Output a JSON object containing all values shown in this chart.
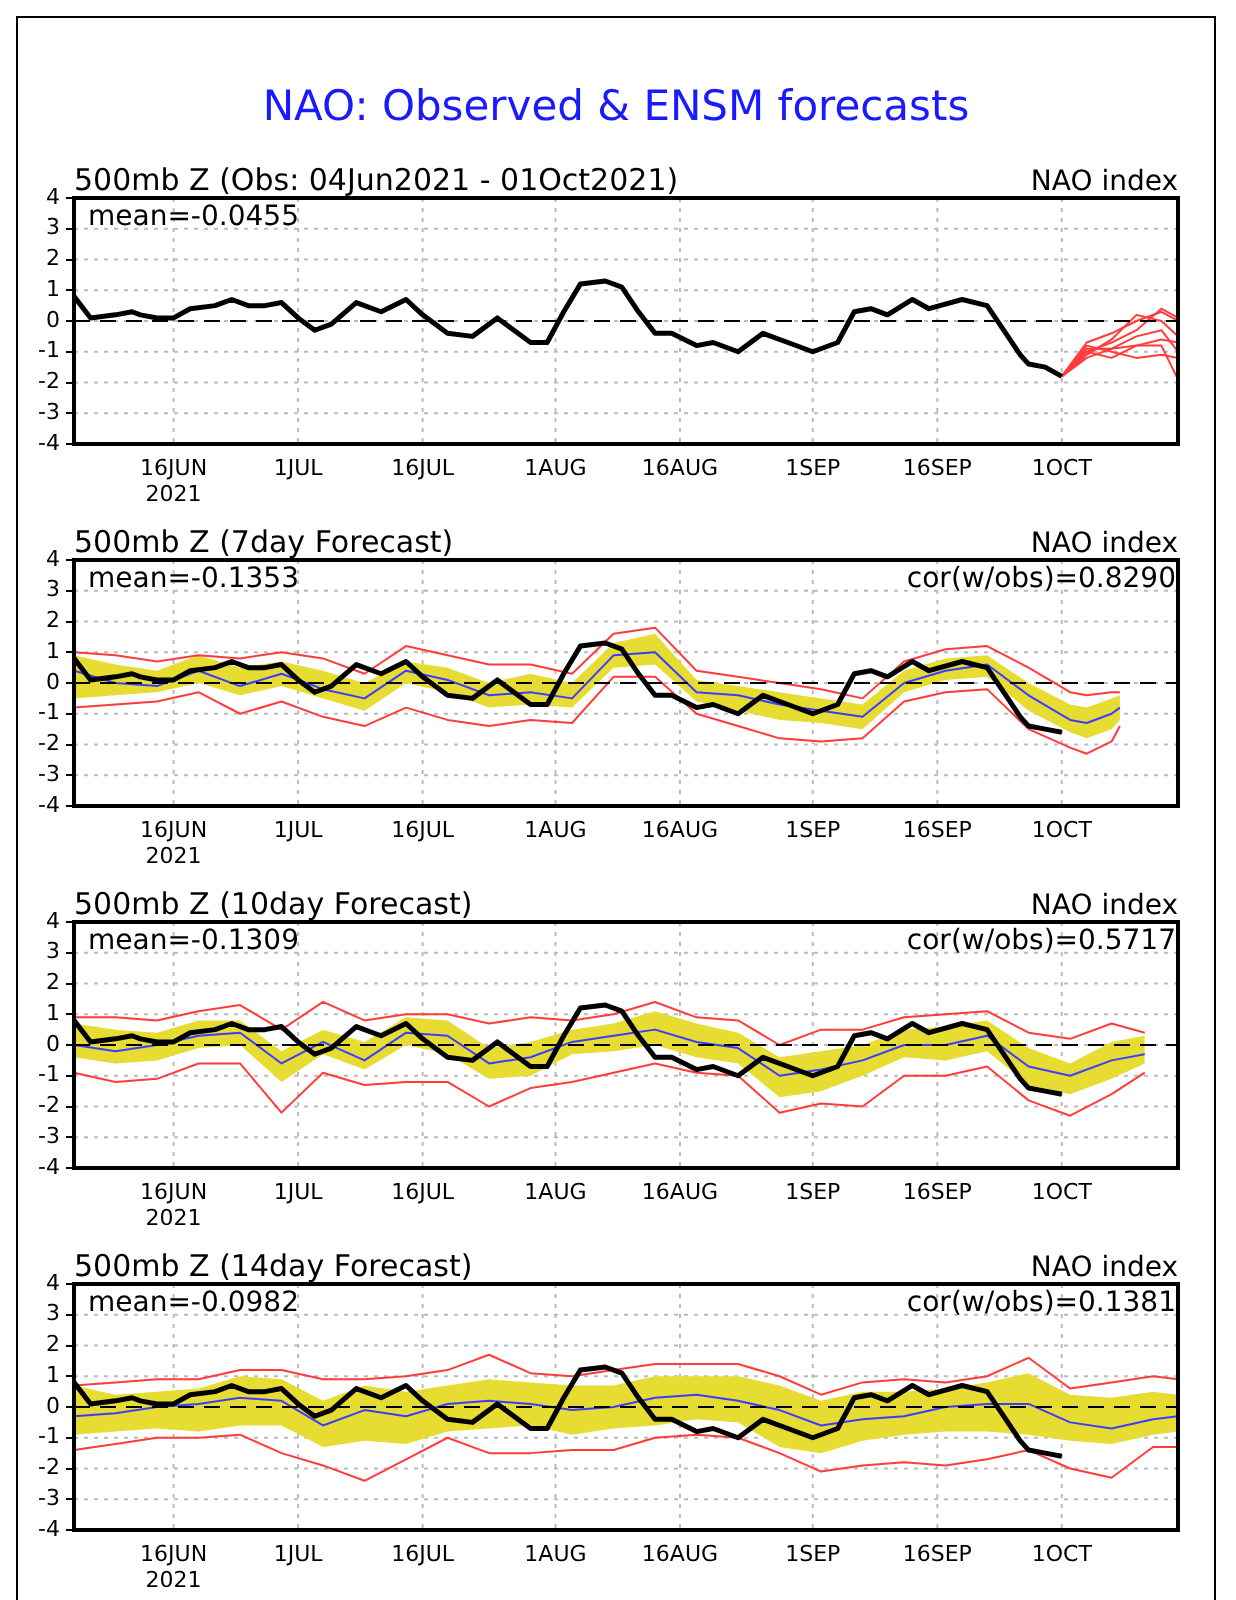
{
  "chart_data": [
    {
      "type": "line",
      "title": "NAO: Observed & ENSM forecasts",
      "subtitle": "500mb Z (Obs: 04Jun2021 - 01Oct2021)",
      "annotations": [
        "NAO index",
        "mean=-0.0455"
      ],
      "x": [
        "2021-06-04",
        "2021-06-06",
        "2021-06-09",
        "2021-06-11",
        "2021-06-12",
        "2021-06-14",
        "2021-06-16",
        "2021-06-18",
        "2021-06-21",
        "2021-06-23",
        "2021-06-25",
        "2021-06-27",
        "2021-06-29",
        "2021-07-01",
        "2021-07-03",
        "2021-07-05",
        "2021-07-08",
        "2021-07-11",
        "2021-07-14",
        "2021-07-16",
        "2021-07-19",
        "2021-07-22",
        "2021-07-25",
        "2021-07-27",
        "2021-07-29",
        "2021-07-31",
        "2021-08-02",
        "2021-08-04",
        "2021-08-07",
        "2021-08-09",
        "2021-08-11",
        "2021-08-13",
        "2021-08-15",
        "2021-08-18",
        "2021-08-20",
        "2021-08-23",
        "2021-08-26",
        "2021-08-29",
        "2021-09-01",
        "2021-09-04",
        "2021-09-06",
        "2021-09-08",
        "2021-09-10",
        "2021-09-13",
        "2021-09-15",
        "2021-09-19",
        "2021-09-22",
        "2021-09-24",
        "2021-09-26",
        "2021-09-27",
        "2021-09-29",
        "2021-10-01"
      ],
      "series": [
        {
          "color": "#000000",
          "values": [
            0.8,
            0.1,
            0.2,
            0.3,
            0.2,
            0.1,
            0.1,
            0.4,
            0.5,
            0.7,
            0.5,
            0.5,
            0.6,
            0.1,
            -0.3,
            -0.1,
            0.6,
            0.3,
            0.7,
            0.2,
            -0.4,
            -0.5,
            0.1,
            -0.3,
            -0.7,
            -0.7,
            0.3,
            1.2,
            1.3,
            1.1,
            0.3,
            -0.4,
            -0.4,
            -0.8,
            -0.7,
            -1.0,
            -0.4,
            -0.7,
            -1.0,
            -0.7,
            0.3,
            0.4,
            0.2,
            0.7,
            0.4,
            0.7,
            0.5,
            -0.3,
            -1.1,
            -1.4,
            -1.5,
            -1.8
          ]
        },
        {
          "color": "#ff3b3b",
          "x": [
            "2021-10-01",
            "2021-10-04",
            "2021-10-07",
            "2021-10-10",
            "2021-10-13",
            "2021-10-15"
          ],
          "values": [
            -1.8,
            -1.0,
            -0.7,
            -0.3,
            0.4,
            0.1
          ]
        },
        {
          "color": "#ff3b3b",
          "x": [
            "2021-10-01",
            "2021-10-04",
            "2021-10-07",
            "2021-10-10",
            "2021-10-13",
            "2021-10-15"
          ],
          "values": [
            -1.8,
            -0.9,
            -0.9,
            -0.8,
            -0.8,
            -1.9
          ]
        },
        {
          "color": "#ff3b3b",
          "x": [
            "2021-10-01",
            "2021-10-04",
            "2021-10-07",
            "2021-10-10",
            "2021-10-13",
            "2021-10-15"
          ],
          "values": [
            -1.8,
            -1.1,
            -0.6,
            0.2,
            0.0,
            -0.5
          ]
        },
        {
          "color": "#ff3b3b",
          "x": [
            "2021-10-01",
            "2021-10-04",
            "2021-10-07",
            "2021-10-10",
            "2021-10-13",
            "2021-10-15"
          ],
          "values": [
            -1.8,
            -0.8,
            -1.0,
            -1.2,
            -1.1,
            -1.2
          ]
        },
        {
          "color": "#ff3b3b",
          "x": [
            "2021-10-01",
            "2021-10-04",
            "2021-10-07",
            "2021-10-10",
            "2021-10-13",
            "2021-10-15"
          ],
          "values": [
            -1.8,
            -1.2,
            -0.9,
            -0.5,
            -0.3,
            -1.0
          ]
        },
        {
          "color": "#ff3b3b",
          "x": [
            "2021-10-01",
            "2021-10-04",
            "2021-10-07",
            "2021-10-10",
            "2021-10-13",
            "2021-10-15"
          ],
          "values": [
            -1.8,
            -0.7,
            -0.4,
            0.0,
            0.3,
            0.0
          ]
        },
        {
          "color": "#ff3b3b",
          "x": [
            "2021-10-01",
            "2021-10-04",
            "2021-10-07",
            "2021-10-10",
            "2021-10-13",
            "2021-10-15"
          ],
          "values": [
            -1.8,
            -1.0,
            -1.2,
            -0.8,
            -0.6,
            -0.7
          ]
        }
      ],
      "xlim": [
        "2021-06-04",
        "2021-10-15"
      ],
      "xticks": [
        {
          "value": "2021-06-16",
          "label": "16JUN\n2021"
        },
        {
          "value": "2021-07-01",
          "label": "1JUL"
        },
        {
          "value": "2021-07-16",
          "label": "16JUL"
        },
        {
          "value": "2021-08-01",
          "label": "1AUG"
        },
        {
          "value": "2021-08-16",
          "label": "16AUG"
        },
        {
          "value": "2021-09-01",
          "label": "1SEP"
        },
        {
          "value": "2021-09-16",
          "label": "16SEP"
        },
        {
          "value": "2021-10-01",
          "label": "1OCT"
        }
      ],
      "ylim": [
        -4,
        4
      ],
      "yticks": [
        -4,
        -3,
        -2,
        -1,
        0,
        1,
        2,
        3,
        4
      ],
      "grid": true,
      "marker": "none",
      "ref_lines": [
        {
          "axis": "y",
          "value": 0,
          "line_style": "dashed",
          "color": "#000000"
        }
      ]
    },
    {
      "type": "line",
      "title": "500mb Z (7day Forecast)",
      "annotations": [
        "NAO index",
        "mean=-0.1353",
        "cor(w/obs)=0.8290"
      ],
      "x": [
        "2021-06-04",
        "2021-06-09",
        "2021-06-14",
        "2021-06-19",
        "2021-06-24",
        "2021-06-29",
        "2021-07-04",
        "2021-07-09",
        "2021-07-14",
        "2021-07-19",
        "2021-07-24",
        "2021-07-29",
        "2021-08-03",
        "2021-08-08",
        "2021-08-13",
        "2021-08-18",
        "2021-08-23",
        "2021-08-28",
        "2021-09-02",
        "2021-09-07",
        "2021-09-12",
        "2021-09-17",
        "2021-09-22",
        "2021-09-27",
        "2021-10-02",
        "2021-10-04",
        "2021-10-07",
        "2021-10-08"
      ],
      "series": [
        {
          "color": "#000000",
          "x": [
            "2021-06-04",
            "2021-06-06",
            "2021-06-09",
            "2021-06-11",
            "2021-06-12",
            "2021-06-14",
            "2021-06-16",
            "2021-06-18",
            "2021-06-21",
            "2021-06-23",
            "2021-06-25",
            "2021-06-27",
            "2021-06-29",
            "2021-07-01",
            "2021-07-03",
            "2021-07-05",
            "2021-07-08",
            "2021-07-11",
            "2021-07-14",
            "2021-07-16",
            "2021-07-19",
            "2021-07-22",
            "2021-07-25",
            "2021-07-27",
            "2021-07-29",
            "2021-07-31",
            "2021-08-02",
            "2021-08-04",
            "2021-08-07",
            "2021-08-09",
            "2021-08-11",
            "2021-08-13",
            "2021-08-15",
            "2021-08-18",
            "2021-08-20",
            "2021-08-23",
            "2021-08-26",
            "2021-08-29",
            "2021-09-01",
            "2021-09-04",
            "2021-09-06",
            "2021-09-08",
            "2021-09-10",
            "2021-09-13",
            "2021-09-15",
            "2021-09-19",
            "2021-09-22",
            "2021-09-24",
            "2021-09-26",
            "2021-09-27",
            "2021-09-29",
            "2021-10-01"
          ],
          "values": [
            0.8,
            0.1,
            0.2,
            0.3,
            0.2,
            0.1,
            0.1,
            0.4,
            0.5,
            0.7,
            0.5,
            0.5,
            0.6,
            0.1,
            -0.3,
            -0.1,
            0.6,
            0.3,
            0.7,
            0.2,
            -0.4,
            -0.5,
            0.1,
            -0.3,
            -0.7,
            -0.7,
            0.3,
            1.2,
            1.3,
            1.1,
            0.3,
            -0.4,
            -0.4,
            -0.8,
            -0.7,
            -1.0,
            -0.4,
            -0.7,
            -1.0,
            -0.7,
            0.3,
            0.4,
            0.2,
            0.7,
            0.4,
            0.7,
            0.5,
            -0.3,
            -1.1,
            -1.4,
            -1.5,
            -1.6
          ]
        },
        {
          "color": "#ff3b3b",
          "values": [
            1.0,
            0.9,
            0.7,
            0.9,
            0.8,
            1.0,
            0.8,
            0.3,
            1.2,
            0.9,
            0.6,
            0.6,
            0.3,
            1.6,
            1.8,
            0.4,
            0.2,
            0.0,
            -0.2,
            -0.5,
            0.7,
            1.1,
            1.2,
            0.5,
            -0.3,
            -0.4,
            -0.3,
            -0.3
          ]
        },
        {
          "color": "#ff3b3b",
          "values": [
            -0.8,
            -0.7,
            -0.6,
            -0.3,
            -1.0,
            -0.6,
            -1.1,
            -1.4,
            -0.8,
            -1.2,
            -1.4,
            -1.2,
            -1.3,
            0.2,
            0.2,
            -1.0,
            -1.4,
            -1.8,
            -1.9,
            -1.8,
            -0.6,
            -0.3,
            -0.2,
            -1.5,
            -2.1,
            -2.3,
            -1.9,
            -1.4
          ]
        },
        {
          "color": "#3c3cff",
          "values": [
            0.4,
            0.0,
            -0.1,
            0.4,
            -0.1,
            0.3,
            -0.2,
            -0.5,
            0.4,
            0.1,
            -0.4,
            -0.3,
            -0.5,
            0.9,
            1.0,
            -0.3,
            -0.4,
            -0.7,
            -0.9,
            -1.1,
            0.0,
            0.4,
            0.6,
            -0.4,
            -1.2,
            -1.3,
            -1.0,
            -0.8
          ],
          "lower": [
            -0.5,
            -0.4,
            -0.3,
            0.0,
            -0.4,
            -0.1,
            -0.5,
            -0.9,
            0.0,
            -0.3,
            -0.8,
            -0.7,
            -0.8,
            0.5,
            0.6,
            -0.6,
            -0.9,
            -1.2,
            -1.3,
            -1.5,
            -0.3,
            0.1,
            0.2,
            -0.9,
            -1.6,
            -1.8,
            -1.5,
            -1.2
          ],
          "upper": [
            0.9,
            0.6,
            0.4,
            0.9,
            0.5,
            0.7,
            0.4,
            0.0,
            0.7,
            0.5,
            0.0,
            0.3,
            0.0,
            1.3,
            1.6,
            0.1,
            -0.1,
            -0.3,
            -0.5,
            -0.7,
            0.4,
            0.8,
            0.9,
            0.0,
            -0.7,
            -0.8,
            -0.5,
            -0.4
          ]
        }
      ],
      "xlim": [
        "2021-06-04",
        "2021-10-15"
      ],
      "xticks": [
        {
          "value": "2021-06-16",
          "label": "16JUN\n2021"
        },
        {
          "value": "2021-07-01",
          "label": "1JUL"
        },
        {
          "value": "2021-07-16",
          "label": "16JUL"
        },
        {
          "value": "2021-08-01",
          "label": "1AUG"
        },
        {
          "value": "2021-08-16",
          "label": "16AUG"
        },
        {
          "value": "2021-09-01",
          "label": "1SEP"
        },
        {
          "value": "2021-09-16",
          "label": "16SEP"
        },
        {
          "value": "2021-10-01",
          "label": "1OCT"
        }
      ],
      "ylim": [
        -4,
        4
      ],
      "yticks": [
        -4,
        -3,
        -2,
        -1,
        0,
        1,
        2,
        3,
        4
      ],
      "grid": true,
      "marker": "none",
      "ref_lines": [
        {
          "axis": "y",
          "value": 0,
          "line_style": "dashed",
          "color": "#000000"
        }
      ]
    },
    {
      "type": "line",
      "title": "500mb Z (10day Forecast)",
      "annotations": [
        "NAO index",
        "mean=-0.1309",
        "cor(w/obs)=0.5717"
      ],
      "x": [
        "2021-06-04",
        "2021-06-09",
        "2021-06-14",
        "2021-06-19",
        "2021-06-24",
        "2021-06-29",
        "2021-07-04",
        "2021-07-09",
        "2021-07-14",
        "2021-07-19",
        "2021-07-24",
        "2021-07-29",
        "2021-08-03",
        "2021-08-08",
        "2021-08-13",
        "2021-08-18",
        "2021-08-23",
        "2021-08-28",
        "2021-09-02",
        "2021-09-07",
        "2021-09-12",
        "2021-09-17",
        "2021-09-22",
        "2021-09-27",
        "2021-10-02",
        "2021-10-07",
        "2021-10-11"
      ],
      "series": [
        {
          "color": "#000000",
          "x": [
            "2021-06-04",
            "2021-06-06",
            "2021-06-09",
            "2021-06-11",
            "2021-06-12",
            "2021-06-14",
            "2021-06-16",
            "2021-06-18",
            "2021-06-21",
            "2021-06-23",
            "2021-06-25",
            "2021-06-27",
            "2021-06-29",
            "2021-07-01",
            "2021-07-03",
            "2021-07-05",
            "2021-07-08",
            "2021-07-11",
            "2021-07-14",
            "2021-07-16",
            "2021-07-19",
            "2021-07-22",
            "2021-07-25",
            "2021-07-27",
            "2021-07-29",
            "2021-07-31",
            "2021-08-02",
            "2021-08-04",
            "2021-08-07",
            "2021-08-09",
            "2021-08-11",
            "2021-08-13",
            "2021-08-15",
            "2021-08-18",
            "2021-08-20",
            "2021-08-23",
            "2021-08-26",
            "2021-08-29",
            "2021-09-01",
            "2021-09-04",
            "2021-09-06",
            "2021-09-08",
            "2021-09-10",
            "2021-09-13",
            "2021-09-15",
            "2021-09-19",
            "2021-09-22",
            "2021-09-24",
            "2021-09-26",
            "2021-09-27",
            "2021-09-29",
            "2021-10-01"
          ],
          "values": [
            0.8,
            0.1,
            0.2,
            0.3,
            0.2,
            0.1,
            0.1,
            0.4,
            0.5,
            0.7,
            0.5,
            0.5,
            0.6,
            0.1,
            -0.3,
            -0.1,
            0.6,
            0.3,
            0.7,
            0.2,
            -0.4,
            -0.5,
            0.1,
            -0.3,
            -0.7,
            -0.7,
            0.3,
            1.2,
            1.3,
            1.1,
            0.3,
            -0.4,
            -0.4,
            -0.8,
            -0.7,
            -1.0,
            -0.4,
            -0.7,
            -1.0,
            -0.7,
            0.3,
            0.4,
            0.2,
            0.7,
            0.4,
            0.7,
            0.5,
            -0.3,
            -1.1,
            -1.4,
            -1.5,
            -1.6
          ]
        },
        {
          "color": "#ff3b3b",
          "values": [
            0.9,
            0.9,
            0.8,
            1.1,
            1.3,
            0.5,
            1.4,
            0.8,
            1.0,
            1.0,
            0.7,
            0.9,
            0.8,
            1.0,
            1.4,
            0.9,
            0.8,
            0.0,
            0.5,
            0.5,
            0.9,
            1.0,
            1.1,
            0.4,
            0.2,
            0.7,
            0.4
          ]
        },
        {
          "color": "#ff3b3b",
          "values": [
            -0.9,
            -1.2,
            -1.1,
            -0.6,
            -0.6,
            -2.2,
            -0.9,
            -1.3,
            -1.2,
            -1.2,
            -2.0,
            -1.4,
            -1.2,
            -0.9,
            -0.6,
            -0.9,
            -1.0,
            -2.2,
            -1.9,
            -2.0,
            -1.0,
            -1.0,
            -0.7,
            -1.8,
            -2.3,
            -1.6,
            -0.9
          ]
        },
        {
          "color": "#3c3cff",
          "values": [
            0.0,
            -0.2,
            0.0,
            0.3,
            0.4,
            -0.6,
            0.1,
            -0.5,
            0.4,
            0.3,
            -0.6,
            -0.4,
            0.1,
            0.3,
            0.5,
            0.1,
            -0.1,
            -1.0,
            -0.8,
            -0.5,
            0.0,
            0.0,
            0.3,
            -0.7,
            -1.0,
            -0.5,
            -0.3
          ],
          "lower": [
            -0.4,
            -0.6,
            -0.5,
            -0.1,
            0.0,
            -1.2,
            -0.3,
            -0.8,
            0.0,
            -0.3,
            -1.1,
            -1.0,
            -0.3,
            -0.2,
            0.0,
            -0.4,
            -0.6,
            -1.7,
            -1.5,
            -1.0,
            -0.4,
            -0.5,
            -0.2,
            -1.3,
            -1.6,
            -1.1,
            -0.6
          ],
          "upper": [
            0.7,
            0.5,
            0.4,
            0.8,
            0.8,
            -0.2,
            0.5,
            0.1,
            0.9,
            0.8,
            -0.1,
            0.1,
            0.5,
            0.7,
            1.1,
            0.7,
            0.4,
            -0.4,
            -0.2,
            0.0,
            0.5,
            0.6,
            0.8,
            -0.1,
            -0.6,
            0.1,
            0.3
          ]
        }
      ],
      "xlim": [
        "2021-06-04",
        "2021-10-15"
      ],
      "xticks": [
        {
          "value": "2021-06-16",
          "label": "16JUN\n2021"
        },
        {
          "value": "2021-07-01",
          "label": "1JUL"
        },
        {
          "value": "2021-07-16",
          "label": "16JUL"
        },
        {
          "value": "2021-08-01",
          "label": "1AUG"
        },
        {
          "value": "2021-08-16",
          "label": "16AUG"
        },
        {
          "value": "2021-09-01",
          "label": "1SEP"
        },
        {
          "value": "2021-09-16",
          "label": "16SEP"
        },
        {
          "value": "2021-10-01",
          "label": "1OCT"
        }
      ],
      "ylim": [
        -4,
        4
      ],
      "yticks": [
        -4,
        -3,
        -2,
        -1,
        0,
        1,
        2,
        3,
        4
      ],
      "grid": true,
      "marker": "none",
      "ref_lines": [
        {
          "axis": "y",
          "value": 0,
          "line_style": "dashed",
          "color": "#000000"
        }
      ]
    },
    {
      "type": "line",
      "title": "500mb Z (14day Forecast)",
      "annotations": [
        "NAO index",
        "mean=-0.0982",
        "cor(w/obs)=0.1381"
      ],
      "x": [
        "2021-06-04",
        "2021-06-09",
        "2021-06-14",
        "2021-06-19",
        "2021-06-24",
        "2021-06-29",
        "2021-07-04",
        "2021-07-09",
        "2021-07-14",
        "2021-07-19",
        "2021-07-24",
        "2021-07-29",
        "2021-08-03",
        "2021-08-08",
        "2021-08-13",
        "2021-08-18",
        "2021-08-23",
        "2021-08-28",
        "2021-09-02",
        "2021-09-07",
        "2021-09-12",
        "2021-09-17",
        "2021-09-22",
        "2021-09-27",
        "2021-10-02",
        "2021-10-07",
        "2021-10-12",
        "2021-10-15"
      ],
      "series": [
        {
          "color": "#000000",
          "x": [
            "2021-06-04",
            "2021-06-06",
            "2021-06-09",
            "2021-06-11",
            "2021-06-12",
            "2021-06-14",
            "2021-06-16",
            "2021-06-18",
            "2021-06-21",
            "2021-06-23",
            "2021-06-25",
            "2021-06-27",
            "2021-06-29",
            "2021-07-01",
            "2021-07-03",
            "2021-07-05",
            "2021-07-08",
            "2021-07-11",
            "2021-07-14",
            "2021-07-16",
            "2021-07-19",
            "2021-07-22",
            "2021-07-25",
            "2021-07-27",
            "2021-07-29",
            "2021-07-31",
            "2021-08-02",
            "2021-08-04",
            "2021-08-07",
            "2021-08-09",
            "2021-08-11",
            "2021-08-13",
            "2021-08-15",
            "2021-08-18",
            "2021-08-20",
            "2021-08-23",
            "2021-08-26",
            "2021-08-29",
            "2021-09-01",
            "2021-09-04",
            "2021-09-06",
            "2021-09-08",
            "2021-09-10",
            "2021-09-13",
            "2021-09-15",
            "2021-09-19",
            "2021-09-22",
            "2021-09-24",
            "2021-09-26",
            "2021-09-27",
            "2021-09-29",
            "2021-10-01"
          ],
          "values": [
            0.8,
            0.1,
            0.2,
            0.3,
            0.2,
            0.1,
            0.1,
            0.4,
            0.5,
            0.7,
            0.5,
            0.5,
            0.6,
            0.1,
            -0.3,
            -0.1,
            0.6,
            0.3,
            0.7,
            0.2,
            -0.4,
            -0.5,
            0.1,
            -0.3,
            -0.7,
            -0.7,
            0.3,
            1.2,
            1.3,
            1.1,
            0.3,
            -0.4,
            -0.4,
            -0.8,
            -0.7,
            -1.0,
            -0.4,
            -0.7,
            -1.0,
            -0.7,
            0.3,
            0.4,
            0.2,
            0.7,
            0.4,
            0.7,
            0.5,
            -0.3,
            -1.1,
            -1.4,
            -1.5,
            -1.6
          ]
        },
        {
          "color": "#ff3b3b",
          "values": [
            0.7,
            0.8,
            0.9,
            0.9,
            1.2,
            1.2,
            0.9,
            0.9,
            1.0,
            1.2,
            1.7,
            1.1,
            1.0,
            1.2,
            1.4,
            1.4,
            1.4,
            1.0,
            0.4,
            0.8,
            0.9,
            0.8,
            1.0,
            1.6,
            0.6,
            0.8,
            1.0,
            0.9
          ]
        },
        {
          "color": "#ff3b3b",
          "values": [
            -1.4,
            -1.2,
            -1.0,
            -1.0,
            -0.9,
            -1.5,
            -1.9,
            -2.4,
            -1.7,
            -1.0,
            -1.5,
            -1.5,
            -1.4,
            -1.4,
            -1.0,
            -0.9,
            -1.0,
            -1.5,
            -2.1,
            -1.9,
            -1.8,
            -1.9,
            -1.7,
            -1.4,
            -2.0,
            -2.3,
            -1.3,
            -1.3
          ]
        },
        {
          "color": "#3c3cff",
          "values": [
            -0.3,
            -0.2,
            0.0,
            0.1,
            0.3,
            0.2,
            -0.6,
            -0.1,
            -0.3,
            0.1,
            0.2,
            0.1,
            -0.1,
            0.0,
            0.3,
            0.4,
            0.2,
            -0.1,
            -0.6,
            -0.4,
            -0.3,
            0.0,
            0.1,
            0.1,
            -0.5,
            -0.7,
            -0.4,
            -0.3
          ],
          "lower": [
            -0.9,
            -0.8,
            -0.7,
            -0.8,
            -0.6,
            -0.6,
            -1.3,
            -1.1,
            -1.2,
            -0.8,
            -0.7,
            -0.6,
            -0.9,
            -0.7,
            -0.6,
            -0.4,
            -0.5,
            -1.3,
            -1.5,
            -1.1,
            -0.9,
            -0.8,
            -0.8,
            -0.9,
            -1.1,
            -1.2,
            -0.9,
            -0.8
          ],
          "upper": [
            0.7,
            0.4,
            0.5,
            0.6,
            1.0,
            0.9,
            0.2,
            0.7,
            0.5,
            0.7,
            0.9,
            0.8,
            0.7,
            0.7,
            1.0,
            1.0,
            1.0,
            0.7,
            0.2,
            0.5,
            0.5,
            0.6,
            0.8,
            1.1,
            0.4,
            0.3,
            0.5,
            0.4
          ]
        }
      ],
      "xlim": [
        "2021-06-04",
        "2021-10-15"
      ],
      "xticks": [
        {
          "value": "2021-06-16",
          "label": "16JUN\n2021"
        },
        {
          "value": "2021-07-01",
          "label": "1JUL"
        },
        {
          "value": "2021-07-16",
          "label": "16JUL"
        },
        {
          "value": "2021-08-01",
          "label": "1AUG"
        },
        {
          "value": "2021-08-16",
          "label": "16AUG"
        },
        {
          "value": "2021-09-01",
          "label": "1SEP"
        },
        {
          "value": "2021-09-16",
          "label": "16SEP"
        },
        {
          "value": "2021-10-01",
          "label": "1OCT"
        }
      ],
      "ylim": [
        -4,
        4
      ],
      "yticks": [
        -4,
        -3,
        -2,
        -1,
        0,
        1,
        2,
        3,
        4
      ],
      "grid": true,
      "marker": "none",
      "ref_lines": [
        {
          "axis": "y",
          "value": 0,
          "line_style": "dashed",
          "color": "#000000"
        }
      ]
    }
  ]
}
